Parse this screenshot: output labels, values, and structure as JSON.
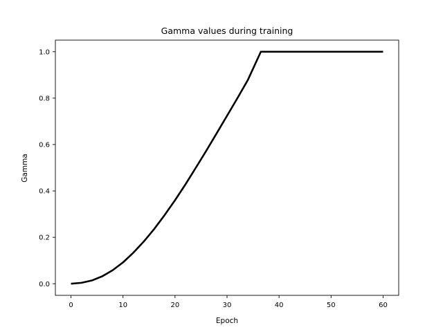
{
  "chart_data": {
    "type": "line",
    "title": "Gamma values during training",
    "xlabel": "Epoch",
    "ylabel": "Gamma",
    "xlim": [
      -3,
      63
    ],
    "ylim": [
      -0.05,
      1.05
    ],
    "x_ticks": [
      0,
      10,
      20,
      30,
      40,
      50,
      60
    ],
    "x_tick_labels": [
      "0",
      "10",
      "20",
      "30",
      "40",
      "50",
      "60"
    ],
    "y_ticks": [
      0.0,
      0.2,
      0.4,
      0.6,
      0.8,
      1.0
    ],
    "y_tick_labels": [
      "0.0",
      "0.2",
      "0.4",
      "0.6",
      "0.8",
      "1.0"
    ],
    "grid": false,
    "series": [
      {
        "color": "#000000",
        "x": [
          0,
          2,
          4,
          6,
          8,
          10,
          12,
          14,
          16,
          18,
          20,
          22,
          24,
          26,
          28,
          30,
          32,
          34,
          36.5,
          40,
          45,
          50,
          55,
          60
        ],
        "y": [
          0.0,
          0.004,
          0.014,
          0.032,
          0.058,
          0.092,
          0.134,
          0.182,
          0.236,
          0.296,
          0.36,
          0.428,
          0.5,
          0.573,
          0.648,
          0.724,
          0.8,
          0.878,
          1.0,
          1.0,
          1.0,
          1.0,
          1.0,
          1.0
        ]
      }
    ]
  }
}
